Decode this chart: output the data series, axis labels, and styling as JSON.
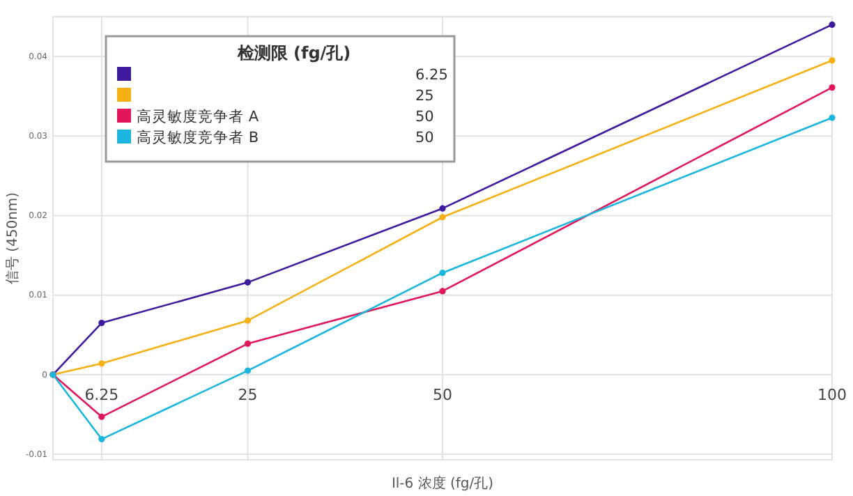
{
  "chart_data": {
    "type": "line",
    "xlabel": "Il-6 浓度 (fg/孔)",
    "ylabel": "信号 (450nm)",
    "legend_title": "检测限 (fg/孔)",
    "x": [
      0,
      6.25,
      25,
      50,
      100
    ],
    "series": [
      {
        "color": "#3f1a9c",
        "values": [
          0,
          0.0065,
          0.0116,
          0.0209,
          0.044
        ]
      },
      {
        "color": "#f5b014",
        "values": [
          0,
          0.0014,
          0.0068,
          0.0198,
          0.0395
        ]
      },
      {
        "name": "高灵敏度竞争者 A",
        "color": "#e0185a",
        "values": [
          0,
          -0.0053,
          0.0039,
          0.0105,
          0.0361
        ]
      },
      {
        "name": "高灵敏度竞争者 B",
        "color": "#1ab6de",
        "values": [
          0,
          -0.0081,
          0.0005,
          0.0128,
          0.0323
        ]
      }
    ],
    "annotations": [
      "6.25",
      "25",
      "50",
      "50"
    ],
    "xlim": [
      0,
      100
    ],
    "xticks": [
      6.25,
      25,
      50,
      100
    ],
    "ylim": [
      -0.0107,
      0.045
    ],
    "yticks": [
      -0.01,
      0,
      0.01,
      0.02,
      0.03,
      0.04
    ],
    "grid": true,
    "legend": "top left",
    "marker": "circle",
    "line_style": "solid"
  }
}
